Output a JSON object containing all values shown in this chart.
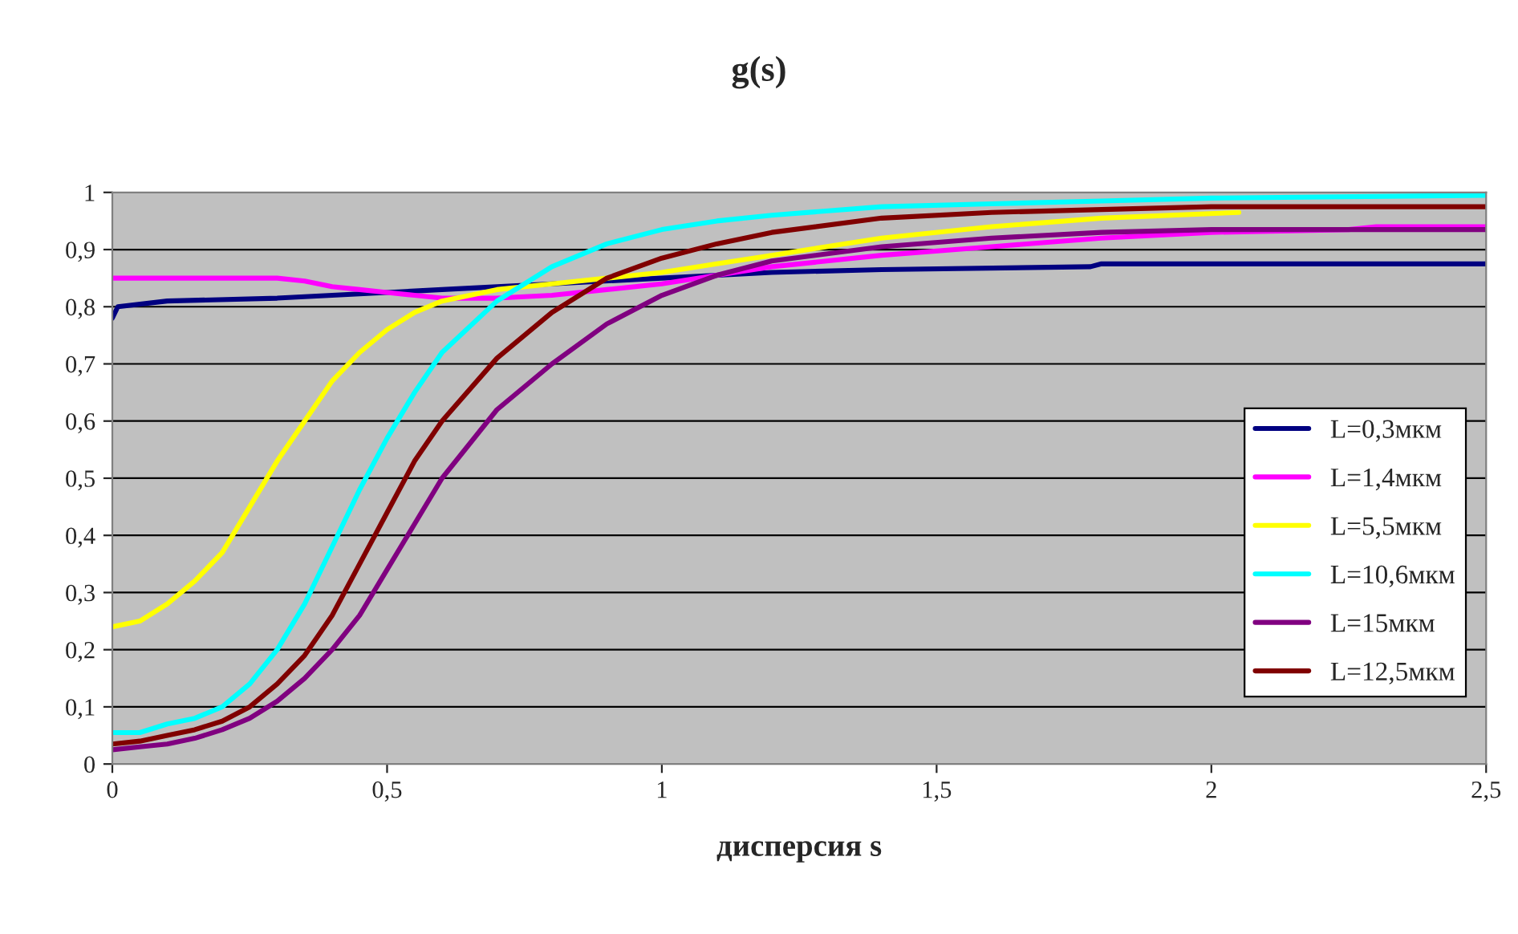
{
  "chart_data": {
    "type": "line",
    "title": "g(s)",
    "xlabel": "дисперсия s",
    "xlim": [
      0,
      2.5
    ],
    "ylim": [
      0,
      1
    ],
    "xticks": [
      0,
      {
        "value": 0.5,
        "label": "0,5"
      },
      1,
      {
        "value": 1.5,
        "label": "1,5"
      },
      2,
      {
        "value": 2.5,
        "label": "2,5"
      }
    ],
    "yticks": [
      0,
      {
        "value": 0.1,
        "label": "0,1"
      },
      {
        "value": 0.2,
        "label": "0,2"
      },
      {
        "value": 0.3,
        "label": "0,3"
      },
      {
        "value": 0.4,
        "label": "0,4"
      },
      {
        "value": 0.5,
        "label": "0,5"
      },
      {
        "value": 0.6,
        "label": "0,6"
      },
      {
        "value": 0.7,
        "label": "0,7"
      },
      {
        "value": 0.8,
        "label": "0,8"
      },
      {
        "value": 0.9,
        "label": "0,9"
      },
      1
    ],
    "grid": "y",
    "legend": "right",
    "marker": "none",
    "line_style": "solid",
    "series": [
      {
        "name": "L=0,3мкм",
        "color": "#000080",
        "x": [
          0,
          0.01,
          0.1,
          0.3,
          0.4,
          0.5,
          0.6,
          0.7,
          0.8,
          1.0,
          1.2,
          1.4,
          1.78,
          1.8,
          2.5
        ],
        "values": [
          0.78,
          0.8,
          0.81,
          0.815,
          0.82,
          0.825,
          0.83,
          0.835,
          0.84,
          0.85,
          0.86,
          0.865,
          0.87,
          0.875,
          0.875
        ]
      },
      {
        "name": "L=1,4мкм",
        "color": "#ff00ff",
        "x": [
          0,
          0.2,
          0.3,
          0.35,
          0.4,
          0.45,
          0.5,
          0.55,
          0.6,
          0.7,
          0.8,
          0.9,
          1.0,
          1.1,
          1.2,
          1.4,
          1.6,
          1.8,
          2.0,
          2.25,
          2.3,
          2.5
        ],
        "values": [
          0.85,
          0.85,
          0.85,
          0.845,
          0.835,
          0.83,
          0.825,
          0.82,
          0.815,
          0.815,
          0.82,
          0.83,
          0.84,
          0.855,
          0.87,
          0.89,
          0.905,
          0.92,
          0.93,
          0.935,
          0.94,
          0.94
        ]
      },
      {
        "name": "L=5,5мкм",
        "color": "#ffff00",
        "x": [
          0,
          0.05,
          0.1,
          0.15,
          0.2,
          0.25,
          0.3,
          0.35,
          0.4,
          0.45,
          0.5,
          0.55,
          0.6,
          0.7,
          0.8,
          0.9,
          1.0,
          1.1,
          1.2,
          1.4,
          1.6,
          1.8,
          2.05
        ],
        "values": [
          0.24,
          0.25,
          0.28,
          0.32,
          0.37,
          0.45,
          0.53,
          0.6,
          0.67,
          0.72,
          0.76,
          0.79,
          0.81,
          0.83,
          0.84,
          0.85,
          0.86,
          0.875,
          0.89,
          0.92,
          0.94,
          0.955,
          0.965
        ]
      },
      {
        "name": "L=10,6мкм",
        "color": "#00ffff",
        "x": [
          0,
          0.05,
          0.1,
          0.15,
          0.2,
          0.25,
          0.3,
          0.35,
          0.4,
          0.45,
          0.5,
          0.55,
          0.6,
          0.7,
          0.8,
          0.9,
          1.0,
          1.1,
          1.2,
          1.4,
          1.6,
          1.8,
          2.0,
          2.5
        ],
        "values": [
          0.055,
          0.055,
          0.07,
          0.08,
          0.1,
          0.14,
          0.2,
          0.28,
          0.38,
          0.48,
          0.57,
          0.65,
          0.72,
          0.81,
          0.87,
          0.91,
          0.935,
          0.95,
          0.96,
          0.975,
          0.98,
          0.985,
          0.99,
          0.995
        ]
      },
      {
        "name": "L=15мкм",
        "color": "#800080",
        "x": [
          0,
          0.05,
          0.1,
          0.15,
          0.2,
          0.25,
          0.3,
          0.35,
          0.4,
          0.45,
          0.5,
          0.55,
          0.6,
          0.7,
          0.8,
          0.9,
          1.0,
          1.1,
          1.2,
          1.4,
          1.6,
          1.8,
          2.0,
          2.5
        ],
        "values": [
          0.025,
          0.03,
          0.035,
          0.045,
          0.06,
          0.08,
          0.11,
          0.15,
          0.2,
          0.26,
          0.34,
          0.42,
          0.5,
          0.62,
          0.7,
          0.77,
          0.82,
          0.855,
          0.88,
          0.905,
          0.92,
          0.93,
          0.935,
          0.935
        ]
      },
      {
        "name": "L=12,5мкм",
        "color": "#800000",
        "x": [
          0,
          0.05,
          0.1,
          0.15,
          0.2,
          0.25,
          0.3,
          0.35,
          0.4,
          0.45,
          0.5,
          0.55,
          0.6,
          0.7,
          0.8,
          0.9,
          1.0,
          1.1,
          1.2,
          1.4,
          1.6,
          1.8,
          2.0,
          2.5
        ],
        "values": [
          0.035,
          0.04,
          0.05,
          0.06,
          0.075,
          0.1,
          0.14,
          0.19,
          0.26,
          0.35,
          0.44,
          0.53,
          0.6,
          0.71,
          0.79,
          0.85,
          0.885,
          0.91,
          0.93,
          0.955,
          0.965,
          0.97,
          0.975,
          0.975
        ]
      }
    ]
  }
}
